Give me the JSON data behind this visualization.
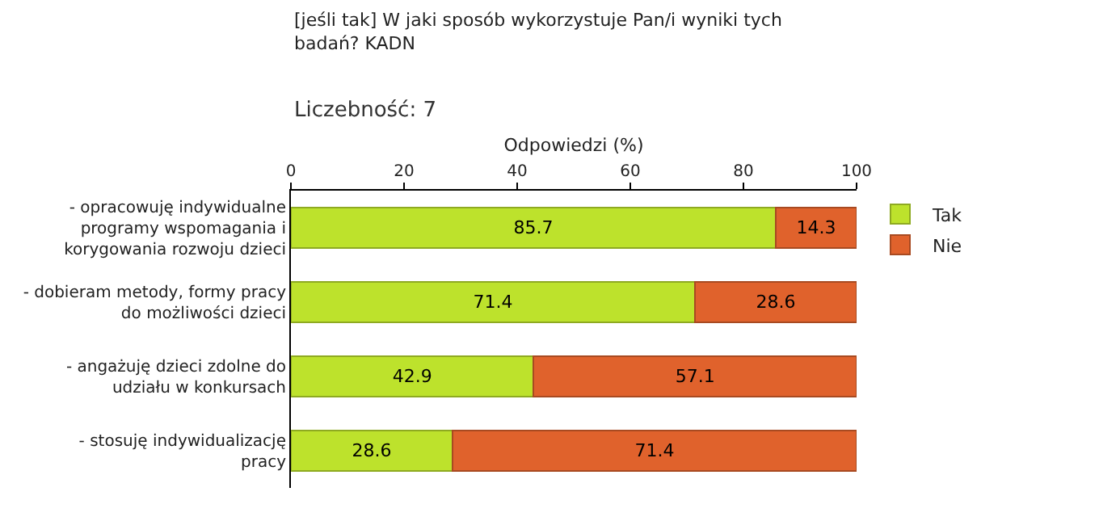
{
  "chart_data": {
    "type": "bar",
    "orientation": "horizontal",
    "stacked": true,
    "title": "[jeśli tak] W jaki sposób wykorzystuje Pan/i wyniki tych badań? KADN",
    "subtitle": "Liczebność: 7",
    "xlabel": "Odpowiedzi (%)",
    "categories": [
      "- opracowuję indywidualne programy wspomagania i korygowania rozwoju dzieci",
      "- dobieram metody, formy pracy do możliwości dzieci",
      "- angażuję dzieci zdolne do udziału w konkursach",
      "- stosuję indywidualizację pracy"
    ],
    "series": [
      {
        "name": "Tak",
        "color": "#bde22c",
        "values": [
          85.7,
          71.4,
          42.9,
          28.6
        ]
      },
      {
        "name": "Nie",
        "color": "#e0622c",
        "values": [
          14.3,
          28.6,
          57.1,
          71.4
        ]
      }
    ],
    "xlim": [
      0,
      100
    ],
    "xticks": [
      0,
      20,
      40,
      60,
      80,
      100
    ],
    "data_labels": true,
    "legend": "top right",
    "grid": false
  }
}
